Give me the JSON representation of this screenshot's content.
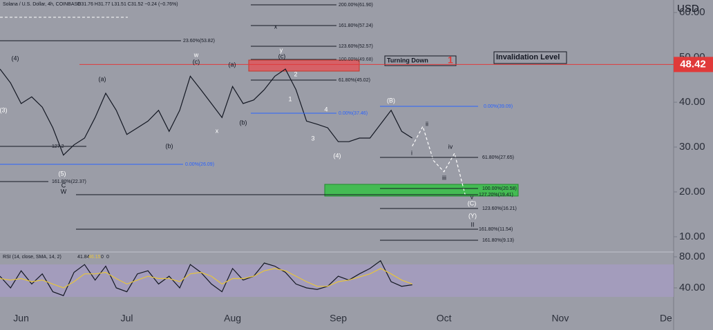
{
  "chart_data": [
    {
      "type": "line",
      "header": "Solana / U.S. Dollar, 4h, COINBASE",
      "ohlc": "O31.76 H31.77 L31.51 C31.52 −0.24 (−0.76%)",
      "currency": "USD",
      "categories": [
        null,
        null,
        "Jun",
        null,
        null,
        null,
        null,
        null,
        null,
        null,
        null,
        null,
        "Jul",
        null,
        null,
        null,
        null,
        null,
        null,
        null,
        null,
        null,
        "Aug",
        null,
        null,
        null,
        null,
        null,
        null,
        null,
        null,
        null,
        "Sep",
        null,
        null,
        null,
        null,
        null,
        null,
        null,
        null,
        null,
        "Oct",
        null,
        null,
        null,
        null,
        null,
        null,
        null,
        null,
        null,
        null,
        "Nov",
        null,
        null,
        null,
        null,
        null,
        null,
        null,
        null,
        null,
        "De"
      ],
      "series": [
        {
          "color": "#131722",
          "dash": false,
          "values": [
            47.4,
            44.3,
            39.7,
            41.2,
            38.9,
            34.3,
            28.2,
            30.5,
            32,
            36.6,
            42,
            38.2,
            32.8,
            34.3,
            35.8,
            38.2,
            33.5,
            38.2,
            45.8,
            42.8,
            39.7,
            36.6,
            43.5,
            39.7,
            40.5,
            42.8,
            45.8,
            47.4,
            42.8,
            35.8,
            35.1,
            34.3,
            31.2,
            31.2,
            32,
            32,
            35.1,
            38.2,
            33.5,
            32,
            null,
            null,
            null,
            null,
            null,
            null,
            null,
            null,
            null,
            null,
            null,
            null,
            null,
            null,
            null,
            null,
            null,
            null,
            null,
            null,
            null,
            null,
            null,
            null
          ]
        },
        {
          "color": "#ffffff",
          "dash": true,
          "values": [
            null,
            null,
            null,
            null,
            null,
            null,
            null,
            null,
            null,
            null,
            null,
            null,
            null,
            null,
            null,
            null,
            null,
            null,
            null,
            null,
            null,
            null,
            null,
            null,
            null,
            null,
            null,
            null,
            null,
            null,
            null,
            null,
            null,
            null,
            null,
            null,
            null,
            null,
            null,
            30.2,
            34.6,
            27,
            24.5,
            28.6,
            19.4,
            null,
            null,
            null,
            null,
            null,
            null,
            null,
            null,
            null,
            null,
            null,
            null,
            null,
            null,
            null,
            null,
            null,
            null,
            null
          ]
        }
      ],
      "ylim": [
        6.6,
        62.8
      ],
      "yticks": [
        {
          "value": 10,
          "label": "10.00"
        },
        {
          "value": 20,
          "label": "20.00"
        },
        {
          "value": 30,
          "label": "30.00"
        },
        {
          "value": 40,
          "label": "40.00"
        },
        {
          "value": 50,
          "label": "50.00"
        },
        {
          "value": 60,
          "label": "60.00"
        }
      ],
      "price_label": 48.42,
      "fib_levels": [
        "200.00%(61.90)",
        "161.80%(57.24)",
        "123.60%(52.57)",
        "100.00%(49.68)",
        "61.80%(45.02)",
        "0.00%(37.46)",
        "23.60%(53.82)",
        "127.2",
        "0.00%(26.09)",
        "161.80%(22.37)",
        "0.00%(39.09)",
        "61.80%(27.65)",
        "100.00%(20.58)",
        "127.20%(19.41)",
        "123.60%(16.21)",
        "161.80%(11.54)",
        "161.80%(9.13)"
      ],
      "wave_labels": [
        "(4)",
        "(3)",
        "(5)",
        "C",
        "W",
        "(a)",
        "(b)",
        "w",
        "(c)",
        "(a)",
        "x",
        "(b)",
        "y",
        "(c)",
        "x",
        "2",
        "1",
        "4",
        "3",
        "(4)",
        "(B)",
        "i",
        "ii",
        "iii",
        "iv",
        "v",
        "(C)",
        "(Y)",
        "II"
      ],
      "notes": [
        "Turning Down",
        "1",
        "Invalidation Level"
      ]
    },
    {
      "type": "line",
      "header": "RSI (14, close, SMA, 14, 2)",
      "header_values": [
        "41.84",
        "46.15",
        "0",
        "0"
      ],
      "series": [
        {
          "color": "#131722",
          "values": [
            55,
            40,
            62,
            45,
            58,
            35,
            30,
            60,
            70,
            50,
            68,
            40,
            35,
            58,
            62,
            45,
            55,
            40,
            70,
            60,
            45,
            35,
            65,
            50,
            55,
            72,
            68,
            60,
            45,
            40,
            38,
            42,
            55,
            50,
            58,
            65,
            75,
            48,
            42,
            44
          ]
        },
        {
          "color": "#e8c53a",
          "values": [
            52,
            50,
            52,
            48,
            50,
            45,
            40,
            48,
            58,
            58,
            60,
            52,
            45,
            50,
            55,
            52,
            52,
            48,
            58,
            60,
            55,
            45,
            52,
            52,
            55,
            62,
            65,
            62,
            55,
            48,
            42,
            42,
            48,
            50,
            54,
            58,
            65,
            58,
            50,
            45
          ]
        }
      ],
      "ylim": [
        15.1,
        86.2
      ],
      "yticks": [
        {
          "value": 40,
          "label": "40.00"
        },
        {
          "value": 80,
          "label": "80.00"
        }
      ]
    }
  ]
}
